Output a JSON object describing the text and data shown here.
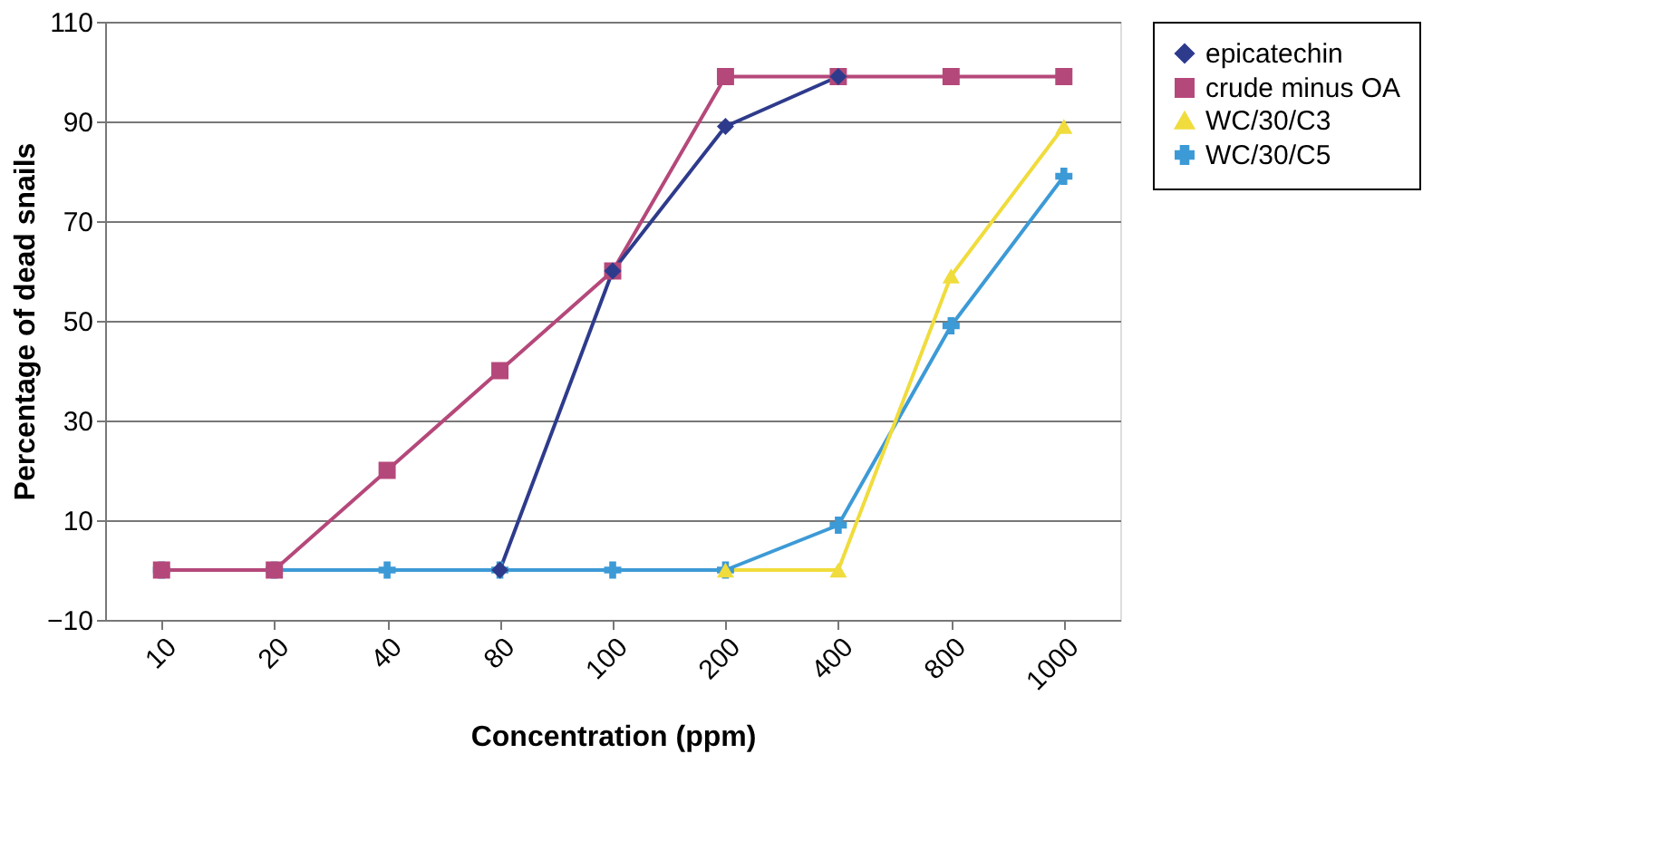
{
  "chart_data": {
    "type": "line",
    "xlabel": "Concentration (ppm)",
    "ylabel": "Percentage of dead snails",
    "categories": [
      "10",
      "20",
      "40",
      "80",
      "100",
      "200",
      "400",
      "800",
      "1000"
    ],
    "series": [
      {
        "name": "epicatechin",
        "color": "#2e3b8c",
        "marker": "diamond",
        "values": [
          null,
          null,
          null,
          0,
          60,
          89,
          99,
          null,
          null
        ]
      },
      {
        "name": "crude minus OA",
        "color": "#b5487a",
        "marker": "square",
        "values": [
          0,
          0,
          20,
          40,
          60,
          99,
          99,
          99,
          99
        ]
      },
      {
        "name": "WC/30/C3",
        "color": "#f0dc3c",
        "marker": "triangle",
        "values": [
          null,
          null,
          null,
          null,
          null,
          0,
          0,
          59,
          89
        ]
      },
      {
        "name": "WC/30/C5",
        "color": "#3c9ad6",
        "marker": "cross",
        "values": [
          0,
          0,
          0,
          0,
          0,
          0,
          9,
          49,
          79
        ]
      }
    ],
    "ylim": [
      -10,
      110
    ],
    "yticks": [
      -10,
      10,
      30,
      50,
      70,
      90,
      110
    ],
    "grid": "y",
    "legend": "right",
    "line_style": "solid"
  }
}
